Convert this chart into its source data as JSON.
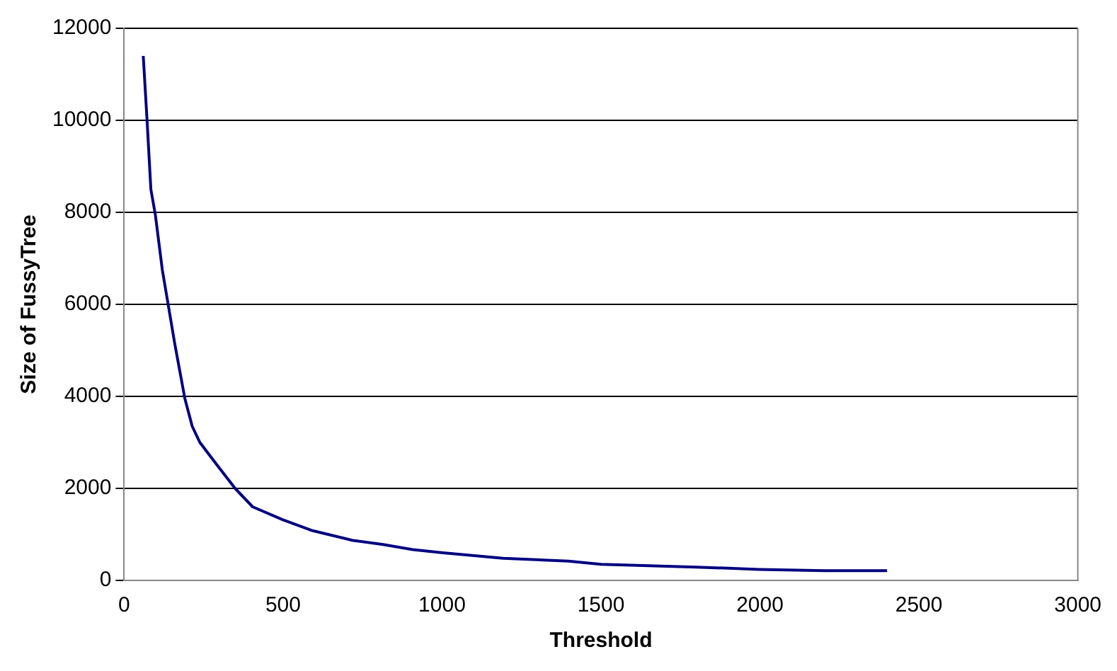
{
  "chart_data": {
    "type": "line",
    "xlabel": "Threshold",
    "ylabel": "Size of FussyTree",
    "x": [
      60,
      72,
      84,
      98,
      120,
      159,
      191,
      214,
      238,
      293,
      349,
      404,
      498,
      593,
      719,
      814,
      908,
      1003,
      1192,
      1397,
      1500,
      1799,
      1996,
      2201,
      2400
    ],
    "series": [
      {
        "color": "#000080",
        "values": [
          11400,
          10000,
          8500,
          7950,
          6750,
          5150,
          3950,
          3350,
          3000,
          2500,
          2000,
          1600,
          1320,
          1080,
          870,
          780,
          670,
          600,
          480,
          420,
          350,
          290,
          240,
          210,
          210
        ]
      }
    ],
    "xlim": [
      0,
      3000
    ],
    "xticks": [
      0,
      500,
      1000,
      1500,
      2000,
      2500,
      3000
    ],
    "ylim": [
      0,
      12000
    ],
    "yticks": [
      0,
      2000,
      4000,
      6000,
      8000,
      10000,
      12000
    ],
    "grid": "y",
    "legend": false,
    "marker": "none",
    "line_style": "solid"
  }
}
